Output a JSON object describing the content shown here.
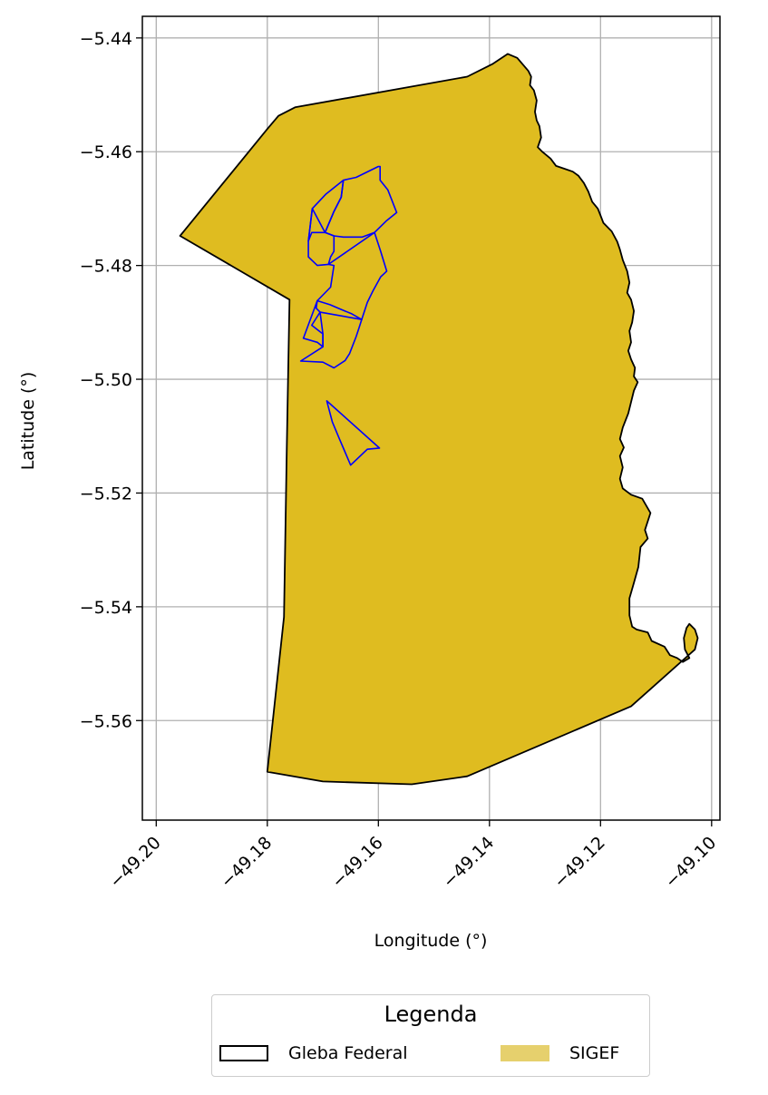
{
  "chart_data": {
    "type": "map",
    "xlabel": "Longitude (°)",
    "ylabel": "Latitude (°)",
    "xlim": [
      -49.2025,
      -49.0985
    ],
    "ylim": [
      -5.5775,
      -5.4362
    ],
    "xticks": [
      -49.2,
      -49.18,
      -49.16,
      -49.14,
      -49.12,
      -49.1
    ],
    "xtick_labels": [
      "−49.20",
      "−49.18",
      "−49.16",
      "−49.14",
      "−49.12",
      "−49.10"
    ],
    "yticks": [
      -5.44,
      -5.46,
      -5.48,
      -5.5,
      -5.52,
      -5.54,
      -5.56
    ],
    "ytick_labels": [
      "−5.44",
      "−5.46",
      "−5.48",
      "−5.50",
      "−5.52",
      "−5.54",
      "−5.56"
    ],
    "grid": true,
    "colors": {
      "fill": "#dfbc20",
      "outline": "#000000",
      "parcels": "#0000ff",
      "grid": "#b0b0b0",
      "legend_sigef": "#e6d06d"
    },
    "gleba_federal": [
      [
        -49.1957,
        -5.4748
      ],
      [
        -49.18,
        -5.456
      ],
      [
        -49.178,
        -5.4537
      ],
      [
        -49.175,
        -5.4522
      ],
      [
        -49.144,
        -5.4468
      ],
      [
        -49.1395,
        -5.4446
      ],
      [
        -49.1367,
        -5.4428
      ],
      [
        -49.135,
        -5.4435
      ],
      [
        -49.133,
        -5.4458
      ],
      [
        -49.1325,
        -5.4468
      ],
      [
        -49.1327,
        -5.4483
      ],
      [
        -49.132,
        -5.4492
      ],
      [
        -49.1315,
        -5.451
      ],
      [
        -49.1318,
        -5.453
      ],
      [
        -49.1315,
        -5.4545
      ],
      [
        -49.131,
        -5.4555
      ],
      [
        -49.1307,
        -5.4575
      ],
      [
        -49.1313,
        -5.4592
      ],
      [
        -49.1305,
        -5.46
      ],
      [
        -49.129,
        -5.4612
      ],
      [
        -49.128,
        -5.4625
      ],
      [
        -49.1265,
        -5.463
      ],
      [
        -49.125,
        -5.4635
      ],
      [
        -49.124,
        -5.4642
      ],
      [
        -49.123,
        -5.4655
      ],
      [
        -49.1222,
        -5.467
      ],
      [
        -49.1215,
        -5.4688
      ],
      [
        -49.1205,
        -5.47
      ],
      [
        -49.12,
        -5.4712
      ],
      [
        -49.1195,
        -5.4725
      ],
      [
        -49.118,
        -5.474
      ],
      [
        -49.117,
        -5.4758
      ],
      [
        -49.1165,
        -5.4772
      ],
      [
        -49.116,
        -5.479
      ],
      [
        -49.1152,
        -5.481
      ],
      [
        -49.1148,
        -5.483
      ],
      [
        -49.1152,
        -5.4848
      ],
      [
        -49.1145,
        -5.486
      ],
      [
        -49.114,
        -5.488
      ],
      [
        -49.1143,
        -5.49
      ],
      [
        -49.1148,
        -5.4915
      ],
      [
        -49.1145,
        -5.4935
      ],
      [
        -49.115,
        -5.495
      ],
      [
        -49.1145,
        -5.4965
      ],
      [
        -49.1138,
        -5.498
      ],
      [
        -49.114,
        -5.4995
      ],
      [
        -49.1133,
        -5.5005
      ],
      [
        -49.114,
        -5.502
      ],
      [
        -49.1145,
        -5.504
      ],
      [
        -49.115,
        -5.506
      ],
      [
        -49.116,
        -5.5085
      ],
      [
        -49.1165,
        -5.5105
      ],
      [
        -49.1158,
        -5.512
      ],
      [
        -49.1165,
        -5.5135
      ],
      [
        -49.116,
        -5.5155
      ],
      [
        -49.1165,
        -5.5175
      ],
      [
        -49.116,
        -5.5192
      ],
      [
        -49.1145,
        -5.5203
      ],
      [
        -49.1125,
        -5.521
      ],
      [
        -49.111,
        -5.5235
      ],
      [
        -49.112,
        -5.5265
      ],
      [
        -49.1115,
        -5.528
      ],
      [
        -49.1128,
        -5.5295
      ],
      [
        -49.1132,
        -5.533
      ],
      [
        -49.114,
        -5.5358
      ],
      [
        -49.1148,
        -5.5385
      ],
      [
        -49.1148,
        -5.5415
      ],
      [
        -49.1143,
        -5.5435
      ],
      [
        -49.1135,
        -5.544
      ],
      [
        -49.1115,
        -5.5445
      ],
      [
        -49.1108,
        -5.546
      ],
      [
        -49.1085,
        -5.547
      ],
      [
        -49.1075,
        -5.5485
      ],
      [
        -49.1062,
        -5.549
      ],
      [
        -49.1052,
        -5.5497
      ],
      [
        -49.104,
        -5.549
      ],
      [
        -49.1048,
        -5.5475
      ],
      [
        -49.105,
        -5.5455
      ],
      [
        -49.1045,
        -5.5437
      ],
      [
        -49.104,
        -5.543
      ],
      [
        -49.103,
        -5.544
      ],
      [
        -49.1025,
        -5.5455
      ],
      [
        -49.103,
        -5.5475
      ],
      [
        -49.1145,
        -5.5575
      ],
      [
        -49.144,
        -5.5698
      ],
      [
        -49.154,
        -5.5712
      ],
      [
        -49.17,
        -5.5707
      ],
      [
        -49.18,
        -5.569
      ],
      [
        -49.177,
        -5.5418
      ],
      [
        -49.1765,
        -5.512
      ],
      [
        -49.176,
        -5.486
      ],
      [
        -49.1957,
        -5.4748
      ]
    ],
    "sigef_parcels": [
      [
        [
          -49.1719,
          -5.47
        ],
        [
          -49.1695,
          -5.4675
        ],
        [
          -49.1663,
          -5.465
        ],
        [
          -49.1667,
          -5.468
        ],
        [
          -49.168,
          -5.4705
        ],
        [
          -49.1696,
          -5.4742
        ],
        [
          -49.172,
          -5.4742
        ],
        [
          -49.1726,
          -5.4757
        ]
      ],
      [
        [
          -49.1597,
          -5.4626
        ],
        [
          -49.1597,
          -5.465
        ],
        [
          -49.1583,
          -5.4667
        ],
        [
          -49.1567,
          -5.4707
        ],
        [
          -49.1585,
          -5.4721
        ],
        [
          -49.1607,
          -5.4742
        ],
        [
          -49.1629,
          -5.475
        ],
        [
          -49.1663,
          -5.475
        ],
        [
          -49.168,
          -5.4748
        ],
        [
          -49.1696,
          -5.4742
        ],
        [
          -49.168,
          -5.4705
        ],
        [
          -49.1667,
          -5.468
        ],
        [
          -49.1663,
          -5.465
        ],
        [
          -49.164,
          -5.4645
        ],
        [
          -49.16,
          -5.4626
        ]
      ],
      [
        [
          -49.1719,
          -5.47
        ],
        [
          -49.1726,
          -5.4757
        ],
        [
          -49.1726,
          -5.4785
        ],
        [
          -49.171,
          -5.48
        ],
        [
          -49.169,
          -5.4798
        ],
        [
          -49.1686,
          -5.4785
        ],
        [
          -49.168,
          -5.4775
        ],
        [
          -49.168,
          -5.4748
        ],
        [
          -49.1696,
          -5.4742
        ]
      ],
      [
        [
          -49.1607,
          -5.4742
        ],
        [
          -49.1596,
          -5.4775
        ],
        [
          -49.1585,
          -5.481
        ],
        [
          -49.1596,
          -5.482
        ],
        [
          -49.161,
          -5.4845
        ],
        [
          -49.162,
          -5.4865
        ],
        [
          -49.163,
          -5.4895
        ],
        [
          -49.1648,
          -5.4885
        ],
        [
          -49.1668,
          -5.4877
        ],
        [
          -49.1687,
          -5.4869
        ],
        [
          -49.171,
          -5.4862
        ],
        [
          -49.1686,
          -5.4838
        ],
        [
          -49.168,
          -5.48
        ],
        [
          -49.169,
          -5.4798
        ]
      ],
      [
        [
          -49.171,
          -5.4862
        ],
        [
          -49.1712,
          -5.4875
        ],
        [
          -49.1705,
          -5.4882
        ],
        [
          -49.172,
          -5.4905
        ],
        [
          -49.1703,
          -5.4918
        ],
        [
          -49.17,
          -5.492
        ],
        [
          -49.17,
          -5.4943
        ],
        [
          -49.171,
          -5.4935
        ],
        [
          -49.1735,
          -5.4928
        ]
      ],
      [
        [
          -49.1705,
          -5.4882
        ],
        [
          -49.163,
          -5.4895
        ],
        [
          -49.1635,
          -5.491
        ],
        [
          -49.164,
          -5.4925
        ],
        [
          -49.1652,
          -5.4955
        ],
        [
          -49.166,
          -5.4967
        ],
        [
          -49.168,
          -5.498
        ],
        [
          -49.17,
          -5.497
        ],
        [
          -49.174,
          -5.4968
        ],
        [
          -49.17,
          -5.4943
        ],
        [
          -49.17,
          -5.492
        ]
      ],
      [
        [
          -49.1693,
          -5.5038
        ],
        [
          -49.1683,
          -5.5075
        ],
        [
          -49.167,
          -5.5105
        ],
        [
          -49.165,
          -5.5151
        ],
        [
          -49.162,
          -5.5123
        ],
        [
          -49.1598,
          -5.5121
        ],
        [
          -49.1693,
          -5.5038
        ]
      ]
    ]
  },
  "legend": {
    "title": "Legenda",
    "items": [
      {
        "label": "Gleba Federal"
      },
      {
        "label": "SIGEF"
      }
    ]
  }
}
